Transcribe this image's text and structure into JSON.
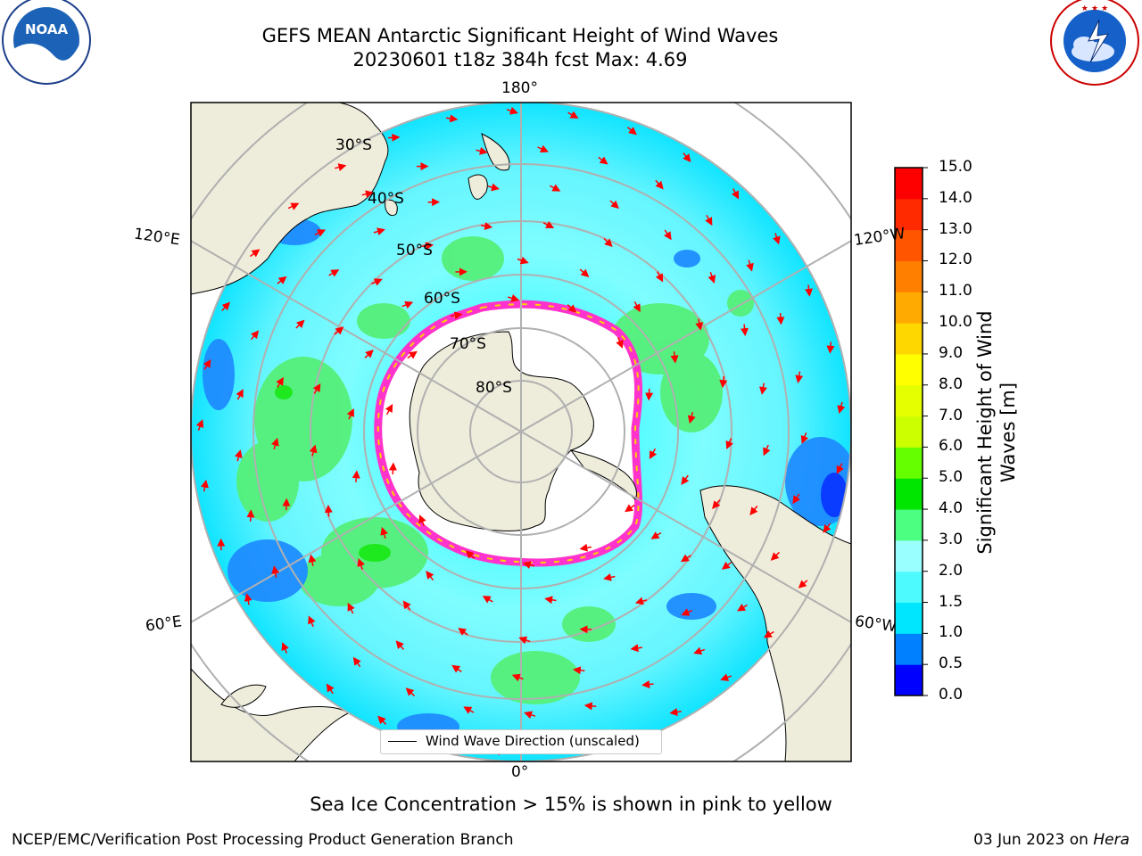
{
  "title_line1": "GEFS MEAN Antarctic Significant Height of Wind Waves",
  "title_line2": "20230601 t18z 384h fcst   Max: 4.69",
  "logos": {
    "noaa": "NOAA",
    "noaa_ring": "NATIONAL OCEANIC AND ATMOSPHERIC ADMINISTRATION · U.S. DEPARTMENT OF COMMERCE",
    "nws_ring": "NATIONAL WEATHER SERVICE"
  },
  "map": {
    "projection": "south polar stereographic",
    "lon_labels": {
      "top": "180°",
      "bottom": "0°",
      "left_upper": "120°E",
      "left_lower": "60°E",
      "right_upper": "120°W",
      "right_lower": "60°W"
    },
    "lat_labels": [
      "30°S",
      "40°S",
      "50°S",
      "60°S",
      "70°S",
      "80°S"
    ],
    "legend": "Wind Wave Direction (unscaled)",
    "colors": {
      "land": "#eeecdb",
      "ice_edge": "#ff33cc",
      "arrow": "#ff0000",
      "graticule": "#b0b0b0"
    }
  },
  "colorbar": {
    "title": "Significant Height of Wind Waves [m]",
    "ticks": [
      "0.0",
      "0.5",
      "1.0",
      "1.5",
      "2.0",
      "3.0",
      "4.0",
      "5.0",
      "6.0",
      "7.0",
      "8.0",
      "9.0",
      "10.0",
      "11.0",
      "12.0",
      "13.0",
      "14.0",
      "15.0"
    ],
    "colors": [
      "#0000ff",
      "#0080ff",
      "#00e6ff",
      "#4dfbff",
      "#99ffff",
      "#4dff80",
      "#00e600",
      "#66ff00",
      "#ccff00",
      "#e6ff00",
      "#ffff00",
      "#ffd700",
      "#ffaa00",
      "#ff8000",
      "#ff5500",
      "#ff2a00",
      "#ff0000"
    ]
  },
  "footer": {
    "caption": "Sea Ice Concentration > 15% is shown in pink to yellow",
    "left": "NCEP/EMC/Verification Post Processing Product Generation Branch",
    "right_prefix": "03 Jun 2023 on ",
    "right_host": "Hera"
  }
}
